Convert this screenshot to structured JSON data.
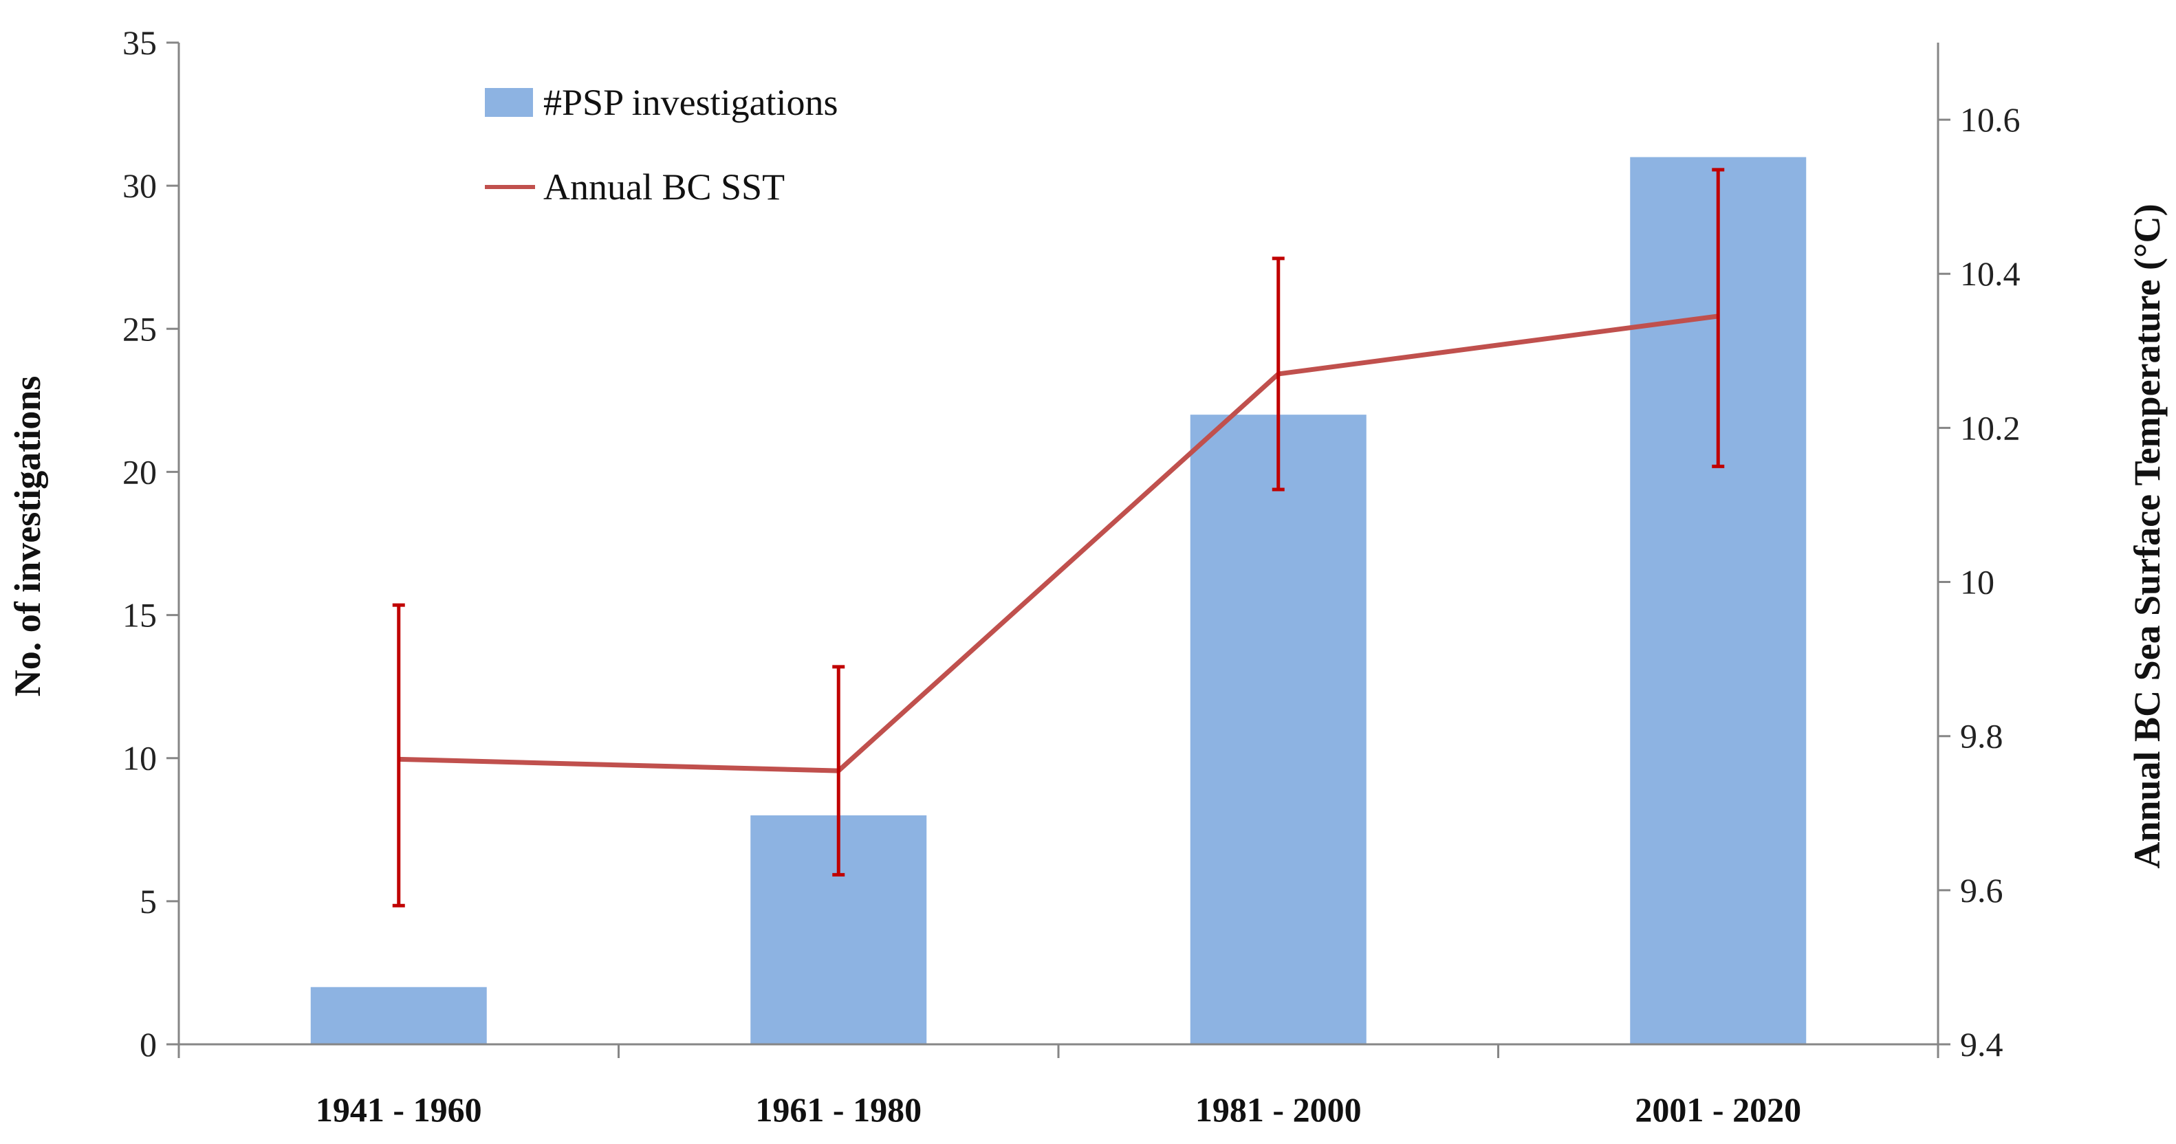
{
  "chart_data": {
    "type": "bar",
    "title": "",
    "categories": [
      "1941 - 1960",
      "1961 - 1980",
      "1981 - 2000",
      "2001 - 2020"
    ],
    "series": [
      {
        "name": "#PSP investigations",
        "type": "bar",
        "axis": "left",
        "color": "#8db3e2",
        "values": [
          2,
          8,
          22,
          31
        ]
      },
      {
        "name": "Annual BC SST",
        "type": "line",
        "axis": "right",
        "color": "#c0504d",
        "values": [
          9.77,
          9.755,
          10.27,
          10.345
        ],
        "error_low": [
          9.58,
          9.62,
          10.12,
          10.15
        ],
        "error_high": [
          9.97,
          9.89,
          10.42,
          10.535
        ]
      }
    ],
    "ylabel": "No. of  investigations",
    "y2label": "Annual BC Sea Surface Temperature (°C)",
    "xlabel": "",
    "ylim": [
      0,
      35
    ],
    "y2lim": [
      9.4,
      10.7
    ],
    "yticks": [
      "0",
      "5",
      "10",
      "15",
      "20",
      "25",
      "30",
      "35"
    ],
    "y2ticks": [
      "9.4",
      "9.6",
      "9.8",
      "10",
      "10.2",
      "10.4",
      "10.6"
    ],
    "grid": false,
    "legend_position": "top-left"
  }
}
